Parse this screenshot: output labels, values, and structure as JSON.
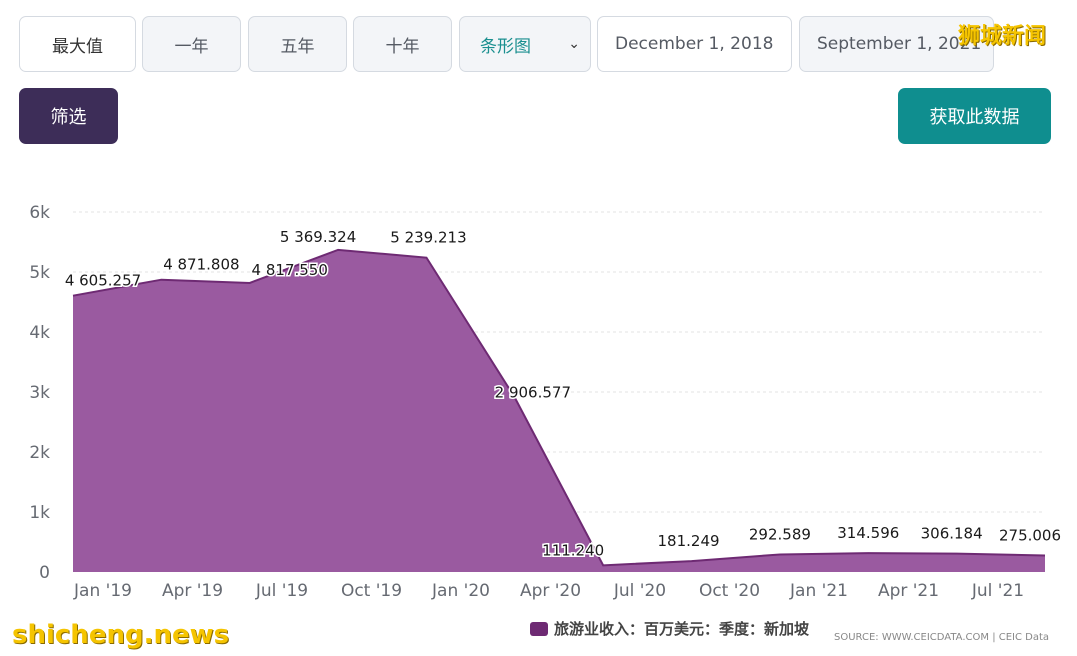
{
  "toolbar": {
    "ranges": [
      "最大值",
      "一年",
      "五年",
      "十年"
    ],
    "chart_type": "条形图",
    "start_date": "December 1, 2018",
    "end_date": "September 1, 2021",
    "filter_label": "筛选",
    "get_data_label": "获取此数据"
  },
  "watermark_top": "狮城新闻",
  "watermark_bottom": "shicheng.news",
  "source_text": "SOURCE: WWW.CEICDATA.COM | CEIC Data",
  "colors": {
    "area_fill": "#9a5aa0",
    "area_stroke": "#6e2a73",
    "filter_btn": "#3d2d58",
    "get_btn": "#0f8e8f"
  },
  "chart_data": {
    "type": "area",
    "x": [
      "2018-12",
      "2019-03",
      "2019-06",
      "2019-09",
      "2019-12",
      "2020-03",
      "2020-06",
      "2020-09",
      "2020-12",
      "2021-03",
      "2021-06",
      "2021-09"
    ],
    "x_tick_labels": [
      "Jan '19",
      "Apr '19",
      "Jul '19",
      "Oct '19",
      "Jan '20",
      "Apr '20",
      "Jul '20",
      "Oct '20",
      "Jan '21",
      "Apr '21",
      "Jul '21"
    ],
    "y_tick_labels": [
      "0",
      "1k",
      "2k",
      "3k",
      "4k",
      "5k",
      "6k"
    ],
    "ylim": [
      0,
      6000
    ],
    "series": [
      {
        "name": "旅游业收入：百万美元：季度：新加坡",
        "values": [
          4605.257,
          4871.808,
          4817.55,
          5369.324,
          5239.213,
          2906.577,
          111.24,
          181.249,
          292.589,
          314.596,
          306.184,
          275.006
        ],
        "labels": [
          "4 605.257",
          "4 871.808",
          "4 817.550",
          "5 369.324",
          "5 239.213",
          "2 906.577",
          "111.240",
          "181.249",
          "292.589",
          "314.596",
          "306.184",
          "275.006"
        ]
      }
    ],
    "legend_position": "bottom-center",
    "grid": true
  }
}
